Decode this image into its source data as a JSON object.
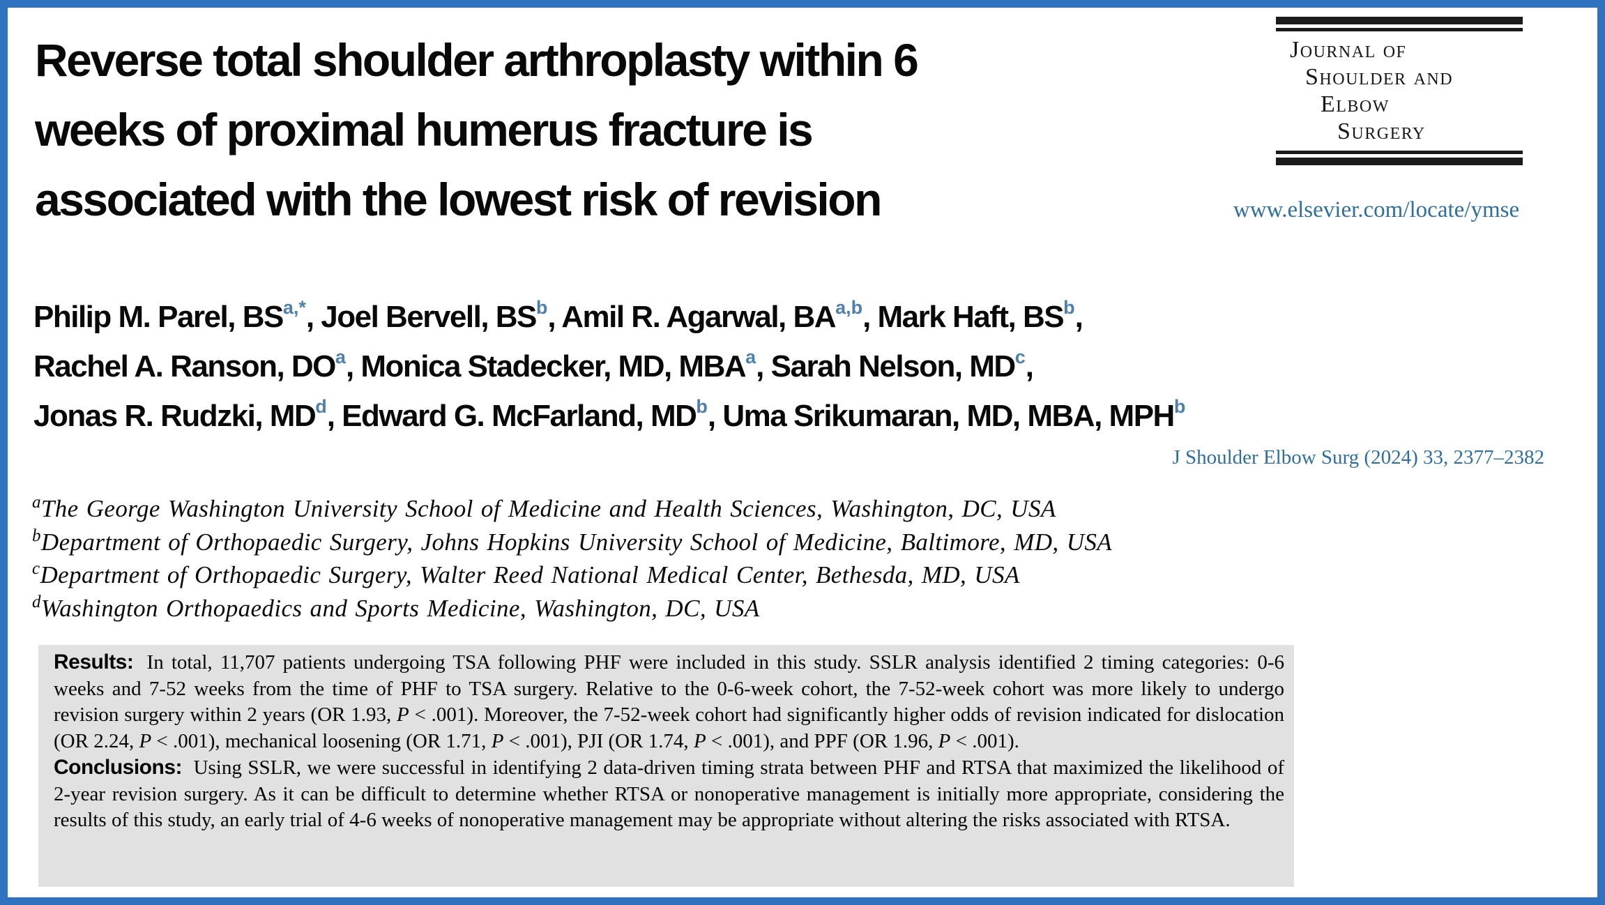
{
  "theme": {
    "border_color": "#2f72bf",
    "link_color": "#2e6f9e",
    "superscript_color": "#4d80aa",
    "abstract_background": "#e1e1e1"
  },
  "title": {
    "lines": [
      "Reverse total shoulder arthroplasty within 6",
      "weeks of proximal humerus fracture is",
      "associated with the lowest risk of revision"
    ]
  },
  "journal": {
    "logo_lines": [
      "Journal of",
      "Shoulder and",
      "Elbow",
      "Surgery"
    ],
    "url": "www.elsevier.com/locate/ymse",
    "citation": "J Shoulder Elbow Surg (2024) 33, 2377–2382"
  },
  "authors": {
    "line1": [
      {
        "t": "Philip M. Parel, BS"
      },
      {
        "t": "a,*",
        "s": "sup"
      },
      {
        "t": ", Joel Bervell, BS"
      },
      {
        "t": "b",
        "s": "sup"
      },
      {
        "t": ", Amil R. Agarwal, BA"
      },
      {
        "t": "a,b",
        "s": "sup"
      },
      {
        "t": ", Mark Haft, BS"
      },
      {
        "t": "b",
        "s": "sup"
      },
      {
        "t": ","
      }
    ],
    "line2": [
      {
        "t": "Rachel A. Ranson, DO"
      },
      {
        "t": "a",
        "s": "sup"
      },
      {
        "t": ", Monica Stadecker, MD, MBA"
      },
      {
        "t": "a",
        "s": "sup"
      },
      {
        "t": ", Sarah Nelson, MD"
      },
      {
        "t": "c",
        "s": "sup"
      },
      {
        "t": ","
      }
    ],
    "line3": [
      {
        "t": "Jonas R. Rudzki, MD"
      },
      {
        "t": "d",
        "s": "sup"
      },
      {
        "t": ", Edward G. McFarland, MD"
      },
      {
        "t": "b",
        "s": "sup"
      },
      {
        "t": ", Uma Srikumaran, MD, MBA, MPH"
      },
      {
        "t": "b",
        "s": "sup"
      }
    ]
  },
  "affiliations": [
    [
      {
        "t": "a",
        "s": "asup"
      },
      {
        "t": "The George Washington University School of Medicine and Health Sciences, Washington, DC, USA"
      }
    ],
    [
      {
        "t": "b",
        "s": "asup"
      },
      {
        "t": "Department of Orthopaedic Surgery, Johns Hopkins University School of Medicine, Baltimore, MD, USA"
      }
    ],
    [
      {
        "t": "c",
        "s": "asup"
      },
      {
        "t": "Department of Orthopaedic Surgery, Walter Reed National Medical Center, Bethesda, MD, USA"
      }
    ],
    [
      {
        "t": "d",
        "s": "asup"
      },
      {
        "t": "Washington Orthopaedics and Sports Medicine, Washington, DC, USA"
      }
    ]
  ],
  "abstract": {
    "results": [
      {
        "t": "Results:",
        "s": "label"
      },
      {
        "t": "In total, 11,707 patients undergoing TSA following PHF were included in this study. SSLR analysis identified 2 timing categories: 0-6 weeks and 7-52 weeks from the time of PHF to TSA surgery. Relative to the 0-6-week cohort, the 7-52-week cohort was more likely to undergo revision surgery within 2 years (OR 1.93, "
      },
      {
        "t": "P",
        "s": "it"
      },
      {
        "t": " < .001). Moreover, the 7-52-week cohort had significantly higher odds of revision indicated for dislocation (OR 2.24, "
      },
      {
        "t": "P",
        "s": "it"
      },
      {
        "t": " < .001), mechanical loosening (OR 1.71, "
      },
      {
        "t": "P",
        "s": "it"
      },
      {
        "t": " < .001), PJI (OR 1.74, "
      },
      {
        "t": "P",
        "s": "it"
      },
      {
        "t": " < .001), and PPF (OR 1.96, "
      },
      {
        "t": "P",
        "s": "it"
      },
      {
        "t": " < .001)."
      }
    ],
    "conclusions": [
      {
        "t": "Conclusions:",
        "s": "label"
      },
      {
        "t": "Using SSLR, we were successful in identifying 2 data-driven timing strata between PHF and RTSA that maximized the likelihood of 2-year revision surgery. As it can be difficult to determine whether RTSA or nonoperative management is initially more appropriate, considering the results of this study, an early trial of 4-6 weeks of nonoperative management may be appropriate without altering the risks associated with RTSA."
      }
    ]
  }
}
